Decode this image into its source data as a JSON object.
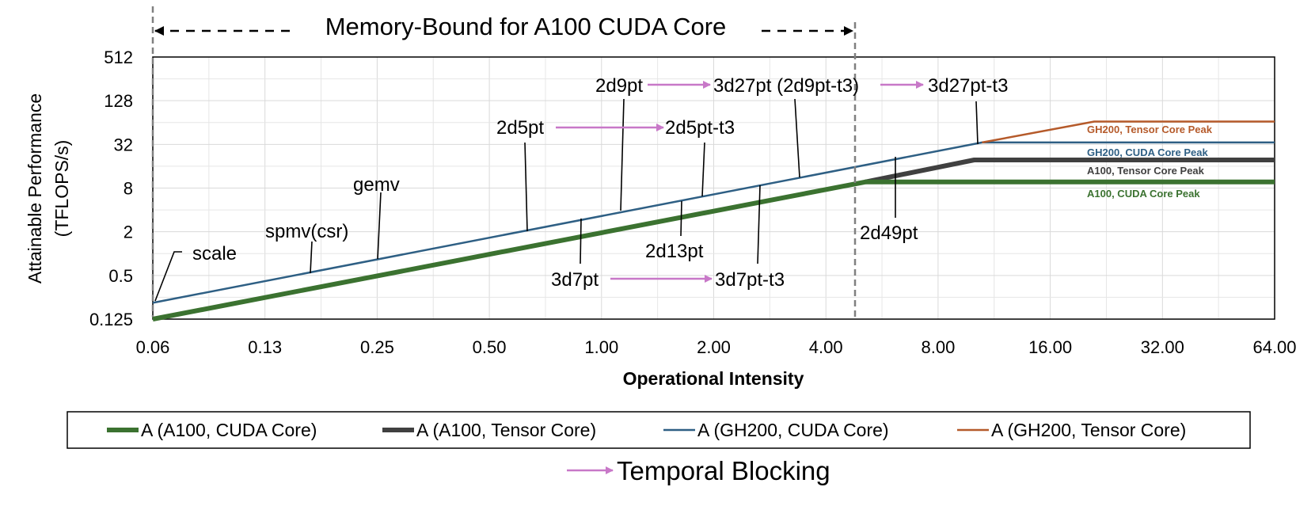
{
  "chart_data": {
    "type": "line",
    "xscale": "log2",
    "yscale": "log2",
    "xlabel": "Operational Intensity",
    "ylabel_line1": "Attainable Performance",
    "ylabel_line2": "(TFLOPS/s)",
    "xlim": [
      0.0625,
      64
    ],
    "ylim": [
      0.125,
      512
    ],
    "x_ticks": [
      0.0625,
      0.125,
      0.25,
      0.5,
      1,
      2,
      4,
      8,
      16,
      32,
      64
    ],
    "x_tick_labels": [
      "0.06",
      "0.13",
      "0.25",
      "0.50",
      "1.00",
      "2.00",
      "4.00",
      "8.00",
      "16.00",
      "32.00",
      "64.00"
    ],
    "y_ticks": [
      0.125,
      0.5,
      2,
      8,
      32,
      128,
      512
    ],
    "y_tick_labels": [
      "0.125",
      "0.5",
      "2",
      "8",
      "32",
      "128",
      "512"
    ],
    "grid": true,
    "legend_position": "bottom",
    "series": [
      {
        "name": "A (A100, CUDA Core)",
        "color": "#3b7230",
        "points": [
          [
            0.0625,
            0.125
          ],
          [
            5.1,
            9.7
          ],
          [
            64,
            9.7
          ]
        ]
      },
      {
        "name": "A (A100, Tensor Core)",
        "color": "#404040",
        "points": [
          [
            5.1,
            9.7
          ],
          [
            10,
            19.5
          ],
          [
            64,
            19.5
          ]
        ]
      },
      {
        "name": "A (GH200, CUDA Core)",
        "color": "#2e5f84",
        "points": [
          [
            0.0625,
            0.21
          ],
          [
            10.5,
            34
          ],
          [
            64,
            34
          ]
        ]
      },
      {
        "name": "A (GH200, Tensor Core)",
        "color": "#b55a2a",
        "points": [
          [
            10.5,
            34
          ],
          [
            21,
            66
          ],
          [
            64,
            66
          ]
        ]
      }
    ],
    "peak_labels": [
      {
        "text": "GH200, Tensor Core Peak",
        "color": "#b55a2a"
      },
      {
        "text": "GH200, CUDA Core Peak",
        "color": "#2e5f84"
      },
      {
        "text": "A100, Tensor Core Peak",
        "color": "#404040"
      },
      {
        "text": "A100, CUDA Core Peak",
        "color": "#3b7230"
      }
    ],
    "memory_bound_label": "Memory-Bound for A100 CUDA Core",
    "memory_bound_x": 5.1,
    "kernel_labels": {
      "scale": "scale",
      "spmv": "spmv(csr)",
      "gemv": "gemv",
      "d2d5pt": "2d5pt",
      "d2d5pt_t3": "2d5pt-t3",
      "d2d9pt": "2d9pt",
      "d3d27pt_2d9pt_t3": "3d27pt (2d9pt-t3)",
      "d3d27pt_t3": "3d27pt-t3",
      "d3d7pt": "3d7pt",
      "d3d7pt_t3": "3d7pt-t3",
      "d2d13pt": "2d13pt",
      "d2d49pt": "2d49pt"
    },
    "temporal_blocking_label": "Temporal Blocking",
    "temporal_blocking_color": "#c878c8"
  }
}
